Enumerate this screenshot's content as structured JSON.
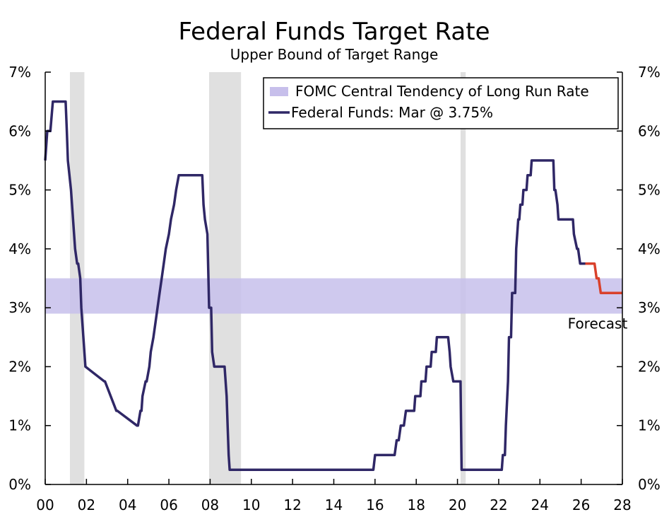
{
  "colors": {
    "series": "#2f2766",
    "forecast": "#d9412b",
    "band": "#c7bfeb",
    "recession": "#e0e0e0",
    "axis": "#000000"
  },
  "chart_data": {
    "type": "line",
    "title": "Federal Funds Target Rate",
    "subtitle": "Upper Bound of Target Range",
    "xlabel": "",
    "ylabel": "",
    "xlim": [
      2000,
      2028
    ],
    "ylim": [
      0,
      7
    ],
    "x_ticks": [
      {
        "value": 2000,
        "label": "00"
      },
      {
        "value": 2002,
        "label": "02"
      },
      {
        "value": 2004,
        "label": "04"
      },
      {
        "value": 2006,
        "label": "06"
      },
      {
        "value": 2008,
        "label": "08"
      },
      {
        "value": 2010,
        "label": "10"
      },
      {
        "value": 2012,
        "label": "12"
      },
      {
        "value": 2014,
        "label": "14"
      },
      {
        "value": 2016,
        "label": "16"
      },
      {
        "value": 2018,
        "label": "18"
      },
      {
        "value": 2020,
        "label": "20"
      },
      {
        "value": 2022,
        "label": "22"
      },
      {
        "value": 2024,
        "label": "24"
      },
      {
        "value": 2026,
        "label": "26"
      },
      {
        "value": 2028,
        "label": "28"
      }
    ],
    "y_ticks": [
      {
        "value": 0,
        "label": "0%"
      },
      {
        "value": 1,
        "label": "1%"
      },
      {
        "value": 2,
        "label": "2%"
      },
      {
        "value": 3,
        "label": "3%"
      },
      {
        "value": 4,
        "label": "4%"
      },
      {
        "value": 5,
        "label": "5%"
      },
      {
        "value": 6,
        "label": "6%"
      },
      {
        "value": 7,
        "label": "7%"
      }
    ],
    "legend_position": "top-right",
    "band": {
      "name": "FOMC Central Tendency of Long Run Rate",
      "low": 2.9,
      "high": 3.5
    },
    "recessions": [
      {
        "start": 2001.2,
        "end": 2001.9
      },
      {
        "start": 2007.95,
        "end": 2009.5
      },
      {
        "start": 2020.15,
        "end": 2020.4
      }
    ],
    "series": [
      {
        "name": "Federal Funds: Mar @ 3.75%",
        "kind": "actual",
        "x": [
          2000.0,
          2000.1,
          2000.25,
          2000.37,
          2000.4,
          2000.5,
          2000.9,
          2000.99,
          2001.05,
          2001.1,
          2001.25,
          2001.35,
          2001.45,
          2001.55,
          2001.6,
          2001.7,
          2001.75,
          2001.85,
          2001.95,
          2002.87,
          2002.9,
          2003.45,
          2003.5,
          2004.45,
          2004.5,
          2004.62,
          2004.67,
          2004.72,
          2004.87,
          2004.92,
          2005.05,
          2005.12,
          2005.25,
          2005.35,
          2005.45,
          2005.55,
          2005.65,
          2005.75,
          2005.85,
          2006.0,
          2006.1,
          2006.25,
          2006.35,
          2006.48,
          2006.55,
          2007.62,
          2007.68,
          2007.75,
          2007.87,
          2007.95,
          2008.05,
          2008.1,
          2008.2,
          2008.25,
          2008.3,
          2008.7,
          2008.8,
          2008.85,
          2008.9,
          2008.95,
          2015.92,
          2016.0,
          2016.95,
          2017.05,
          2017.15,
          2017.25,
          2017.4,
          2017.5,
          2017.9,
          2017.95,
          2018.2,
          2018.25,
          2018.45,
          2018.5,
          2018.7,
          2018.75,
          2018.95,
          2019.0,
          2019.5,
          2019.55,
          2019.62,
          2019.67,
          2019.8,
          2019.85,
          2020.15,
          2020.2,
          2020.25,
          2022.15,
          2022.2,
          2022.3,
          2022.35,
          2022.45,
          2022.5,
          2022.6,
          2022.65,
          2022.8,
          2022.85,
          2022.95,
          2023.0,
          2023.05,
          2023.15,
          2023.2,
          2023.35,
          2023.4,
          2023.55,
          2023.6,
          2024.65,
          2024.7,
          2024.75,
          2024.85,
          2024.9,
          2025.6,
          2025.65,
          2025.8,
          2025.85,
          2025.95,
          2026.2
        ],
        "values": [
          5.5,
          6.0,
          6.0,
          6.5,
          6.5,
          6.5,
          6.5,
          6.5,
          6.0,
          5.5,
          5.0,
          4.5,
          4.0,
          3.75,
          3.75,
          3.5,
          3.0,
          2.5,
          2.0,
          1.75,
          1.75,
          1.25,
          1.25,
          1.0,
          1.0,
          1.25,
          1.25,
          1.5,
          1.75,
          1.75,
          2.0,
          2.25,
          2.5,
          2.75,
          3.0,
          3.25,
          3.5,
          3.75,
          4.0,
          4.25,
          4.5,
          4.75,
          5.0,
          5.25,
          5.25,
          5.25,
          4.75,
          4.5,
          4.25,
          3.0,
          3.0,
          2.25,
          2.0,
          2.0,
          2.0,
          2.0,
          1.5,
          1.0,
          0.5,
          0.25,
          0.25,
          0.5,
          0.5,
          0.75,
          0.75,
          1.0,
          1.0,
          1.25,
          1.25,
          1.5,
          1.5,
          1.75,
          1.75,
          2.0,
          2.0,
          2.25,
          2.25,
          2.5,
          2.5,
          2.5,
          2.25,
          2.0,
          1.75,
          1.75,
          1.75,
          0.25,
          0.25,
          0.25,
          0.5,
          0.5,
          1.0,
          1.75,
          2.5,
          2.5,
          3.25,
          3.25,
          4.0,
          4.5,
          4.5,
          4.75,
          4.75,
          5.0,
          5.0,
          5.25,
          5.25,
          5.5,
          5.5,
          5.0,
          5.0,
          4.75,
          4.5,
          4.5,
          4.25,
          4.0,
          4.0,
          3.75,
          3.75
        ]
      },
      {
        "name": "Forecast",
        "kind": "forecast",
        "x": [
          2026.2,
          2026.45,
          2026.65,
          2026.75,
          2026.85,
          2026.95,
          2027.05,
          2028.0
        ],
        "values": [
          3.75,
          3.75,
          3.75,
          3.5,
          3.5,
          3.25,
          3.25,
          3.25
        ]
      }
    ],
    "legend": [
      {
        "kind": "band",
        "label": "FOMC Central Tendency of Long Run Rate"
      },
      {
        "kind": "line",
        "label": "Federal Funds: Mar @ 3.75%"
      }
    ],
    "annotations": [
      {
        "text": "Forecast",
        "x": 2026.8,
        "y": 2.65
      }
    ]
  }
}
